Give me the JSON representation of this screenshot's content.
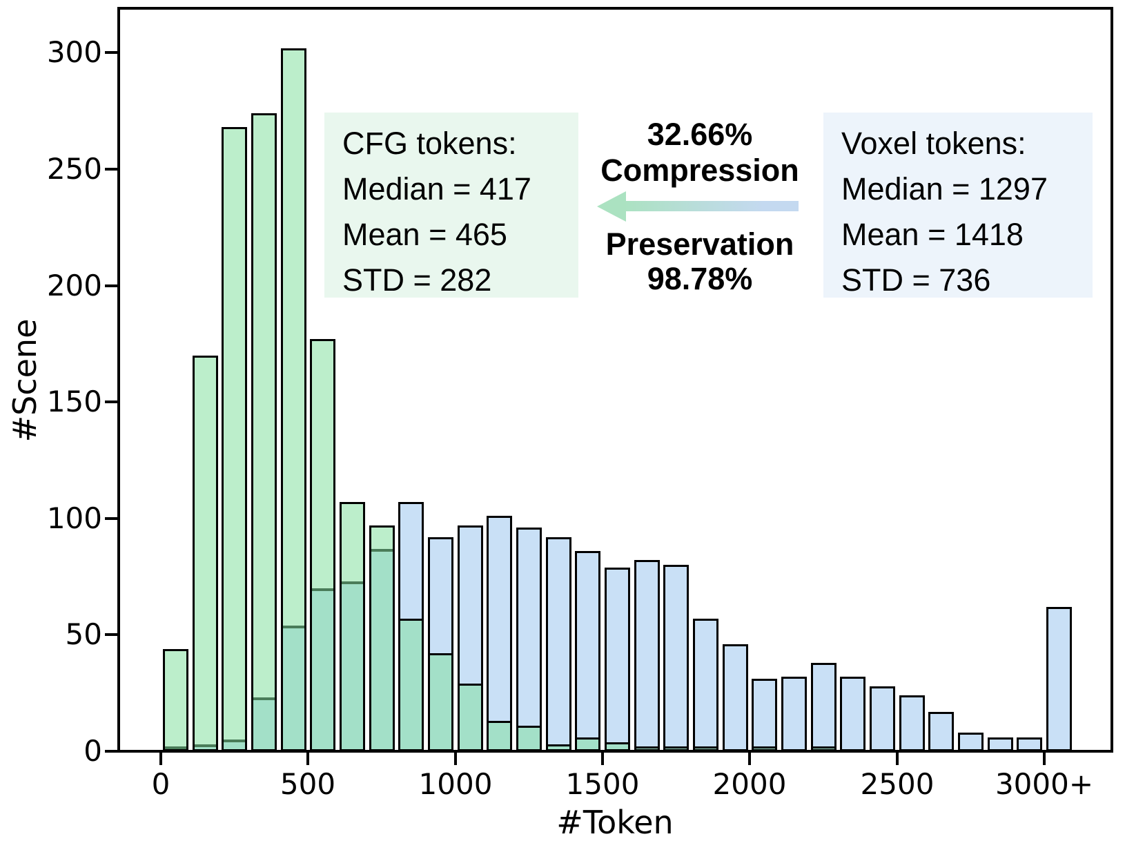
{
  "chart_data": {
    "type": "bar",
    "subtype": "overlaid-histogram",
    "bin_width_tokens": 100,
    "bin_start_tokens": [
      0,
      100,
      200,
      300,
      400,
      500,
      600,
      700,
      800,
      900,
      1000,
      1100,
      1200,
      1300,
      1400,
      1500,
      1600,
      1700,
      1800,
      1900,
      2000,
      2100,
      2200,
      2300,
      2400,
      2500,
      2600,
      2700,
      2800,
      2900,
      3000
    ],
    "last_bin_open_ended": true,
    "series": [
      {
        "name": "CFG tokens",
        "color": "#bceecb",
        "values": [
          44,
          170,
          268,
          274,
          302,
          177,
          107,
          97,
          57,
          42,
          29,
          13,
          11,
          3,
          6,
          4,
          2,
          2,
          2,
          0,
          2,
          0,
          2,
          0,
          0,
          0,
          0,
          0,
          0,
          0,
          0
        ]
      },
      {
        "name": "Voxel tokens",
        "color": "#c9e0f6",
        "values": [
          1,
          3,
          5,
          23,
          54,
          70,
          73,
          87,
          107,
          92,
          97,
          101,
          96,
          92,
          86,
          79,
          82,
          80,
          57,
          46,
          31,
          32,
          38,
          32,
          28,
          24,
          17,
          8,
          6,
          6,
          62
        ]
      }
    ],
    "overlap_color": "#a3e0c8",
    "overlap_edge_green_top": "#4a7c59",
    "overlap_edge_blue_top": "#000000",
    "bar_edge_color": "#000000",
    "xlabel": "#Token",
    "ylabel": "#Scene",
    "x_ticks": [
      {
        "value": 0,
        "label": "0"
      },
      {
        "value": 500,
        "label": "500"
      },
      {
        "value": 1000,
        "label": "1000"
      },
      {
        "value": 1500,
        "label": "1500"
      },
      {
        "value": 2000,
        "label": "2000"
      },
      {
        "value": 2500,
        "label": "2500"
      },
      {
        "value": 3000,
        "label": "3000+"
      }
    ],
    "y_ticks": [
      0,
      50,
      100,
      150,
      200,
      250,
      300
    ],
    "ylim": [
      0,
      319
    ],
    "grid": false,
    "legend_position": "none"
  },
  "annotations": {
    "cfg_box": {
      "bg": "#e9f7ee",
      "title": "CFG tokens:",
      "lines": [
        "Median = 417",
        "Mean = 465",
        "STD = 282"
      ]
    },
    "voxel_box": {
      "bg": "#edf4fb",
      "title": "Voxel tokens:",
      "lines": [
        "Median = 1297",
        "Mean = 1418",
        "STD = 736"
      ]
    },
    "center": {
      "compression_pct": "32.66%",
      "compression_label": "Compression",
      "preservation_label": "Preservation",
      "preservation_pct": "98.78%",
      "arrow_direction": "left",
      "arrow_green": "#abe2c1",
      "arrow_blue": "#c4d9f0"
    }
  }
}
